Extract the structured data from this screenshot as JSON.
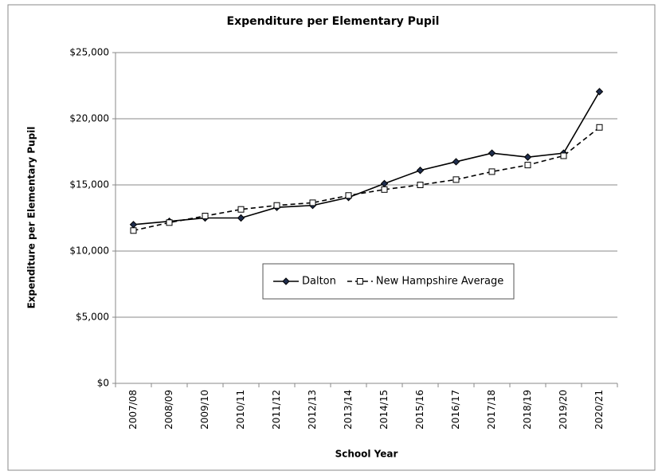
{
  "chart_data": {
    "type": "line",
    "title": "Expenditure per Elementary Pupil",
    "x_label": "School Year",
    "y_label": "Expenditure per Elementary Pupil",
    "categories": [
      "2007/08",
      "2008/09",
      "2009/10",
      "2010/11",
      "2011/12",
      "2012/13",
      "2013/14",
      "2014/15",
      "2015/16",
      "2016/17",
      "2017/18",
      "2018/19",
      "2019/20",
      "2020/21"
    ],
    "series": [
      {
        "name": "Dalton",
        "color": "#000000",
        "marker": "diamond",
        "dash": false,
        "values": [
          12000,
          12250,
          12500,
          12500,
          13300,
          13450,
          14050,
          15100,
          16100,
          16750,
          17400,
          17100,
          17400,
          22050
        ]
      },
      {
        "name": "New Hampshire Average",
        "color": "#000000",
        "marker": "square",
        "dash": true,
        "values": [
          11550,
          12150,
          12650,
          13150,
          13450,
          13650,
          14200,
          14650,
          15000,
          15400,
          16000,
          16500,
          17200,
          19350
        ]
      }
    ],
    "ylim": [
      0,
      25000
    ],
    "yticks": [
      {
        "value": 0,
        "label": "$0"
      },
      {
        "value": 5000,
        "label": "$5,000"
      },
      {
        "value": 10000,
        "label": "$10,000"
      },
      {
        "value": 15000,
        "label": "$15,000"
      },
      {
        "value": 20000,
        "label": "$20,000"
      },
      {
        "value": 25000,
        "label": "$25,000"
      }
    ],
    "grid": true,
    "legend": "center"
  }
}
